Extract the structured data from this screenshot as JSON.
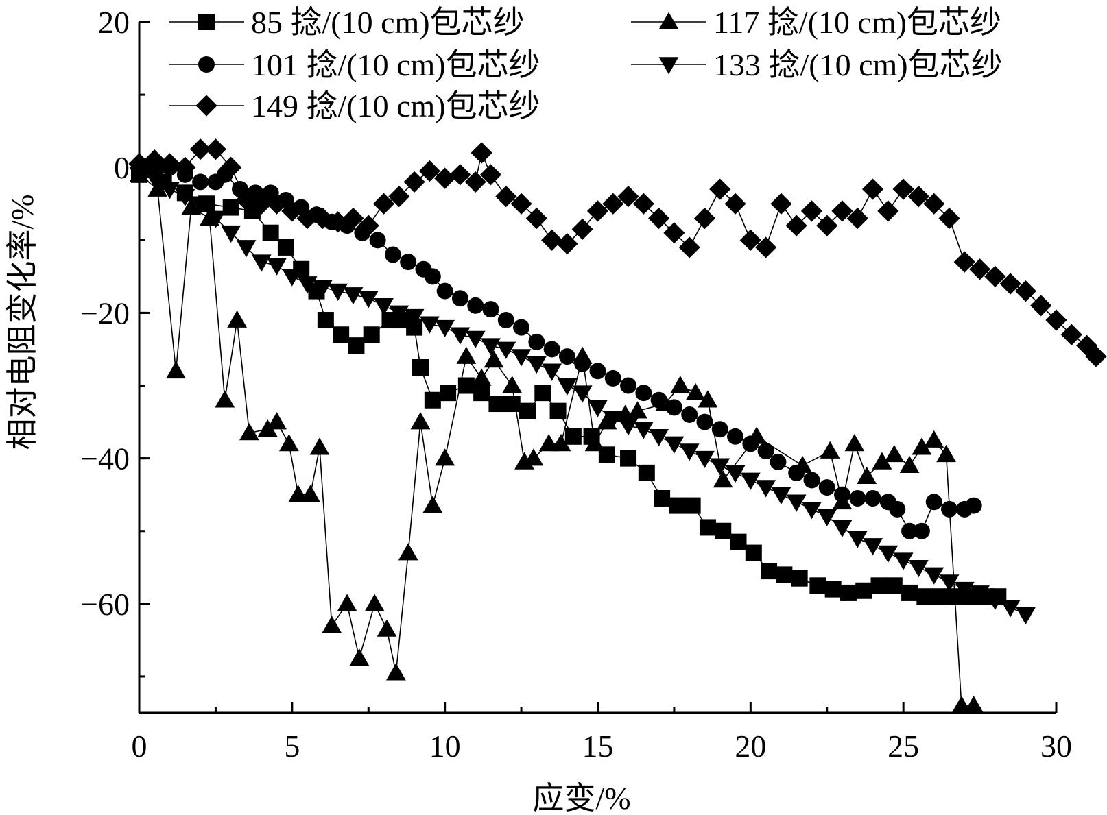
{
  "chart_data": {
    "type": "line",
    "xlabel": "应变/%",
    "ylabel": "相对电阻变化率/%",
    "xlim": [
      0,
      30
    ],
    "ylim": [
      -75,
      20
    ],
    "x_ticks": [
      0,
      5,
      10,
      15,
      20,
      25,
      30
    ],
    "x_tick_labels": [
      "0",
      "5",
      "10",
      "15",
      "20",
      "25",
      "30"
    ],
    "y_ticks": [
      20,
      0,
      -20,
      -40,
      -60
    ],
    "y_tick_labels": [
      "20",
      "0",
      "−20",
      "−40",
      "−60"
    ],
    "grid": false,
    "legend": "top-left",
    "line_color": "#000000",
    "series": [
      {
        "name": "85 捻/(10 cm)包芯纱",
        "marker": "square",
        "points": [
          [
            0,
            -1
          ],
          [
            0.8,
            -2
          ],
          [
            1.5,
            -3.5
          ],
          [
            2.2,
            -5
          ],
          [
            3,
            -5.5
          ],
          [
            3.7,
            -6
          ],
          [
            4.3,
            -9
          ],
          [
            4.8,
            -11
          ],
          [
            5.3,
            -14
          ],
          [
            5.8,
            -17
          ],
          [
            6.1,
            -21
          ],
          [
            6.6,
            -23
          ],
          [
            7.1,
            -24.5
          ],
          [
            7.6,
            -23
          ],
          [
            8.2,
            -21
          ],
          [
            8.6,
            -21
          ],
          [
            9,
            -22
          ],
          [
            9.2,
            -27.5
          ],
          [
            9.6,
            -32
          ],
          [
            10.1,
            -31
          ],
          [
            10.7,
            -30
          ],
          [
            11.2,
            -31
          ],
          [
            11.7,
            -32.5
          ],
          [
            12.2,
            -32.5
          ],
          [
            12.7,
            -33.5
          ],
          [
            13.2,
            -31
          ],
          [
            13.7,
            -33.5
          ],
          [
            14.2,
            -37
          ],
          [
            14.8,
            -37
          ],
          [
            15.3,
            -39.5
          ],
          [
            16,
            -40
          ],
          [
            16.6,
            -42
          ],
          [
            17.1,
            -45.5
          ],
          [
            17.6,
            -46.5
          ],
          [
            18.1,
            -46.5
          ],
          [
            18.6,
            -49.5
          ],
          [
            19.1,
            -50
          ],
          [
            19.6,
            -51.5
          ],
          [
            20.1,
            -53
          ],
          [
            20.6,
            -55.5
          ],
          [
            21.1,
            -56
          ],
          [
            21.6,
            -56.5
          ],
          [
            22.2,
            -57.5
          ],
          [
            22.7,
            -58
          ],
          [
            23.2,
            -58.5
          ],
          [
            23.7,
            -58.2
          ],
          [
            24.2,
            -57.5
          ],
          [
            24.7,
            -57.5
          ],
          [
            25.2,
            -58.5
          ],
          [
            25.7,
            -59
          ],
          [
            26.2,
            -59
          ],
          [
            26.7,
            -59
          ],
          [
            27.2,
            -59
          ],
          [
            27.7,
            -59
          ],
          [
            28.1,
            -59
          ]
        ]
      },
      {
        "name": "117 捻/(10 cm)包芯纱",
        "marker": "triangle-up",
        "points": [
          [
            0,
            -1
          ],
          [
            0.6,
            -3
          ],
          [
            1.2,
            -28
          ],
          [
            1.7,
            -5.5
          ],
          [
            2.3,
            -7
          ],
          [
            2.8,
            -32
          ],
          [
            3.2,
            -21
          ],
          [
            3.6,
            -36.5
          ],
          [
            4.2,
            -36
          ],
          [
            4.5,
            -35
          ],
          [
            4.9,
            -38
          ],
          [
            5.2,
            -45
          ],
          [
            5.6,
            -45
          ],
          [
            5.9,
            -38.5
          ],
          [
            6.3,
            -63
          ],
          [
            6.8,
            -60
          ],
          [
            7.2,
            -67.5
          ],
          [
            7.7,
            -60
          ],
          [
            8.1,
            -63.5
          ],
          [
            8.4,
            -69.5
          ],
          [
            8.8,
            -53
          ],
          [
            9.2,
            -35
          ],
          [
            9.6,
            -46.5
          ],
          [
            10,
            -40
          ],
          [
            10.7,
            -26
          ],
          [
            11.2,
            -29
          ],
          [
            11.6,
            -26.5
          ],
          [
            12.2,
            -30
          ],
          [
            12.6,
            -40.5
          ],
          [
            12.9,
            -40
          ],
          [
            13.4,
            -38
          ],
          [
            13.8,
            -38
          ],
          [
            14.5,
            -26
          ],
          [
            14.9,
            -38
          ],
          [
            15.3,
            -35
          ],
          [
            15.9,
            -34
          ],
          [
            16.3,
            -33.5
          ],
          [
            17.2,
            -32.5
          ],
          [
            17.7,
            -30
          ],
          [
            18.2,
            -31
          ],
          [
            18.6,
            -32
          ],
          [
            19.1,
            -43
          ],
          [
            20.2,
            -37
          ],
          [
            21.7,
            -41
          ],
          [
            22.6,
            -39
          ],
          [
            23,
            -46
          ],
          [
            23.4,
            -38
          ],
          [
            23.8,
            -42.5
          ],
          [
            24.3,
            -40.5
          ],
          [
            24.7,
            -39.5
          ],
          [
            25.2,
            -41
          ],
          [
            25.6,
            -38.5
          ],
          [
            26,
            -37.5
          ],
          [
            26.4,
            -39.5
          ],
          [
            26.9,
            -74
          ],
          [
            27.3,
            -74
          ]
        ]
      },
      {
        "name": "101 捻/(10 cm)包芯纱",
        "marker": "circle",
        "points": [
          [
            0,
            0
          ],
          [
            0.5,
            0
          ],
          [
            1,
            0
          ],
          [
            1.5,
            -1
          ],
          [
            2,
            -2
          ],
          [
            2.5,
            -2
          ],
          [
            2.8,
            -1
          ],
          [
            3.3,
            -3
          ],
          [
            3.8,
            -3.5
          ],
          [
            4.3,
            -3.5
          ],
          [
            4.8,
            -4.5
          ],
          [
            5.3,
            -5.5
          ],
          [
            5.8,
            -6.5
          ],
          [
            6.3,
            -7.5
          ],
          [
            6.8,
            -8
          ],
          [
            7.3,
            -9
          ],
          [
            7.8,
            -10
          ],
          [
            8.3,
            -12
          ],
          [
            8.8,
            -13
          ],
          [
            9.3,
            -14
          ],
          [
            9.6,
            -15
          ],
          [
            10,
            -17
          ],
          [
            10.5,
            -18
          ],
          [
            11,
            -19
          ],
          [
            11.5,
            -19.5
          ],
          [
            12,
            -21
          ],
          [
            12.5,
            -22
          ],
          [
            13,
            -24
          ],
          [
            13.5,
            -25
          ],
          [
            14,
            -26
          ],
          [
            14.5,
            -27
          ],
          [
            15,
            -28
          ],
          [
            15.5,
            -29
          ],
          [
            16,
            -30
          ],
          [
            16.5,
            -31
          ],
          [
            17,
            -32
          ],
          [
            17.5,
            -33
          ],
          [
            18,
            -34
          ],
          [
            18.5,
            -35
          ],
          [
            19,
            -36
          ],
          [
            19.5,
            -37
          ],
          [
            20,
            -38
          ],
          [
            20.5,
            -39
          ],
          [
            20.9,
            -40.5
          ],
          [
            21.5,
            -42
          ],
          [
            22,
            -43
          ],
          [
            22.5,
            -44
          ],
          [
            23,
            -45
          ],
          [
            23.5,
            -45.5
          ],
          [
            24,
            -45.5
          ],
          [
            24.5,
            -46
          ],
          [
            24.8,
            -47
          ],
          [
            25.2,
            -50
          ],
          [
            25.6,
            -50
          ],
          [
            26,
            -46
          ],
          [
            26.5,
            -47
          ],
          [
            27,
            -47
          ],
          [
            27.3,
            -46.5
          ]
        ]
      },
      {
        "name": "133 捻/(10 cm)包芯纱",
        "marker": "triangle-down",
        "points": [
          [
            0,
            -1
          ],
          [
            0.5,
            -1.5
          ],
          [
            1,
            -3
          ],
          [
            1.5,
            -4
          ],
          [
            2,
            -5
          ],
          [
            2.5,
            -7
          ],
          [
            3,
            -9
          ],
          [
            3.5,
            -11
          ],
          [
            4,
            -13
          ],
          [
            4.5,
            -13.5
          ],
          [
            5,
            -15
          ],
          [
            5.5,
            -16
          ],
          [
            6,
            -16.5
          ],
          [
            6.5,
            -17
          ],
          [
            7,
            -17.5
          ],
          [
            7.5,
            -18
          ],
          [
            8,
            -19
          ],
          [
            8.5,
            -20
          ],
          [
            9,
            -20.5
          ],
          [
            9.5,
            -21.5
          ],
          [
            10,
            -22
          ],
          [
            10.5,
            -23
          ],
          [
            11,
            -23.5
          ],
          [
            11.5,
            -24.5
          ],
          [
            12,
            -25
          ],
          [
            12.5,
            -26
          ],
          [
            13,
            -27
          ],
          [
            13.5,
            -28
          ],
          [
            14,
            -30
          ],
          [
            14.5,
            -31
          ],
          [
            15,
            -33
          ],
          [
            15.5,
            -34.5
          ],
          [
            16,
            -35.5
          ],
          [
            16.5,
            -36
          ],
          [
            17,
            -37
          ],
          [
            17.5,
            -38
          ],
          [
            18,
            -39
          ],
          [
            18.5,
            -40
          ],
          [
            19,
            -41
          ],
          [
            19.5,
            -42
          ],
          [
            20,
            -43
          ],
          [
            20.5,
            -44
          ],
          [
            21,
            -45
          ],
          [
            21.5,
            -46
          ],
          [
            22,
            -47
          ],
          [
            22.5,
            -48
          ],
          [
            23,
            -49.5
          ],
          [
            23.5,
            -51
          ],
          [
            24,
            -52
          ],
          [
            24.5,
            -53
          ],
          [
            25,
            -54
          ],
          [
            25.5,
            -55
          ],
          [
            26,
            -56
          ],
          [
            26.5,
            -57
          ],
          [
            27,
            -58
          ],
          [
            27.5,
            -58.5
          ],
          [
            28,
            -59.5
          ],
          [
            28.5,
            -60.5
          ],
          [
            29,
            -61.5
          ]
        ]
      },
      {
        "name": "149 捻/(10 cm)包芯纱",
        "marker": "diamond",
        "points": [
          [
            0,
            0.5
          ],
          [
            0.5,
            1
          ],
          [
            1,
            0.5
          ],
          [
            1.5,
            0
          ],
          [
            2,
            2.5
          ],
          [
            2.5,
            2.5
          ],
          [
            3,
            0
          ],
          [
            3.5,
            -4.5
          ],
          [
            4,
            -5
          ],
          [
            4.5,
            -5
          ],
          [
            5,
            -6
          ],
          [
            5.5,
            -7
          ],
          [
            6,
            -7
          ],
          [
            6.5,
            -7.5
          ],
          [
            7,
            -7
          ],
          [
            7.5,
            -8
          ],
          [
            8,
            -5
          ],
          [
            8.5,
            -4
          ],
          [
            9,
            -2
          ],
          [
            9.5,
            -0.5
          ],
          [
            10,
            -1.5
          ],
          [
            10.5,
            -1
          ],
          [
            11,
            -2
          ],
          [
            11.2,
            2
          ],
          [
            11.5,
            -1
          ],
          [
            12,
            -4
          ],
          [
            12.5,
            -5
          ],
          [
            13,
            -7
          ],
          [
            13.5,
            -10
          ],
          [
            14,
            -10.5
          ],
          [
            14.5,
            -8.5
          ],
          [
            15,
            -6
          ],
          [
            15.5,
            -5
          ],
          [
            16,
            -4
          ],
          [
            16.5,
            -5
          ],
          [
            17,
            -7
          ],
          [
            17.5,
            -9
          ],
          [
            18,
            -11
          ],
          [
            18.5,
            -7
          ],
          [
            19,
            -3
          ],
          [
            19.5,
            -5
          ],
          [
            20,
            -10
          ],
          [
            20.5,
            -11
          ],
          [
            21,
            -5
          ],
          [
            21.5,
            -8
          ],
          [
            22,
            -6
          ],
          [
            22.5,
            -8
          ],
          [
            23,
            -6
          ],
          [
            23.5,
            -7
          ],
          [
            24,
            -3
          ],
          [
            24.5,
            -6
          ],
          [
            25,
            -3
          ],
          [
            25.5,
            -4
          ],
          [
            26,
            -5
          ],
          [
            26.5,
            -7
          ],
          [
            27,
            -13
          ],
          [
            27.5,
            -14
          ],
          [
            28,
            -15
          ],
          [
            28.5,
            -16
          ],
          [
            29,
            -17
          ],
          [
            29.5,
            -19
          ],
          [
            30,
            -21
          ],
          [
            30.5,
            -23
          ],
          [
            31,
            -24.5
          ],
          [
            31.5,
            -26
          ]
        ]
      }
    ]
  }
}
